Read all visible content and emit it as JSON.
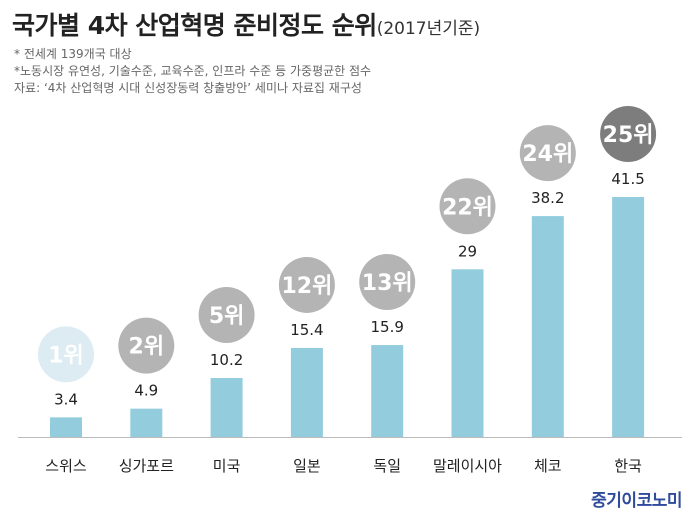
{
  "header": {
    "title": "국가별 4차 산업혁명 준비정도 순위",
    "subtitle": "(2017년기준)",
    "notes": [
      "* 전세계 139개국 대상",
      "*노동시장 유연성, 기술수준, 교육수준, 인프라 수준 등 가중평균한 점수",
      "자료: ‘4차 산업혁명 시대 신성장동력 창출방안’ 세미나 자료집 재구성"
    ]
  },
  "brand": "중기이코노미",
  "colors": {
    "bar": "#93cddd",
    "axis": "#bbbbbb",
    "rank_first_bg": "#dcecf2",
    "rank_bg": "#b4b4b4",
    "rank_last_bg": "#7d7d7d",
    "rank_text": "#ffffff"
  },
  "chart_data": {
    "type": "bar",
    "categories": [
      "스위스",
      "싱가포르",
      "미국",
      "일본",
      "독일",
      "말레이시아",
      "체코",
      "한국"
    ],
    "values": [
      3.4,
      4.9,
      10.2,
      15.4,
      15.9,
      29,
      38.2,
      41.5
    ],
    "value_labels": [
      "3.4",
      "4.9",
      "10.2",
      "15.4",
      "15.9",
      "29",
      "38.2",
      "41.5"
    ],
    "rank_labels": [
      "1위",
      "2위",
      "5위",
      "12위",
      "13위",
      "22위",
      "24위",
      "25위"
    ],
    "ylim": [
      0,
      41.5
    ],
    "grid": false,
    "xlabel": "",
    "ylabel": ""
  }
}
